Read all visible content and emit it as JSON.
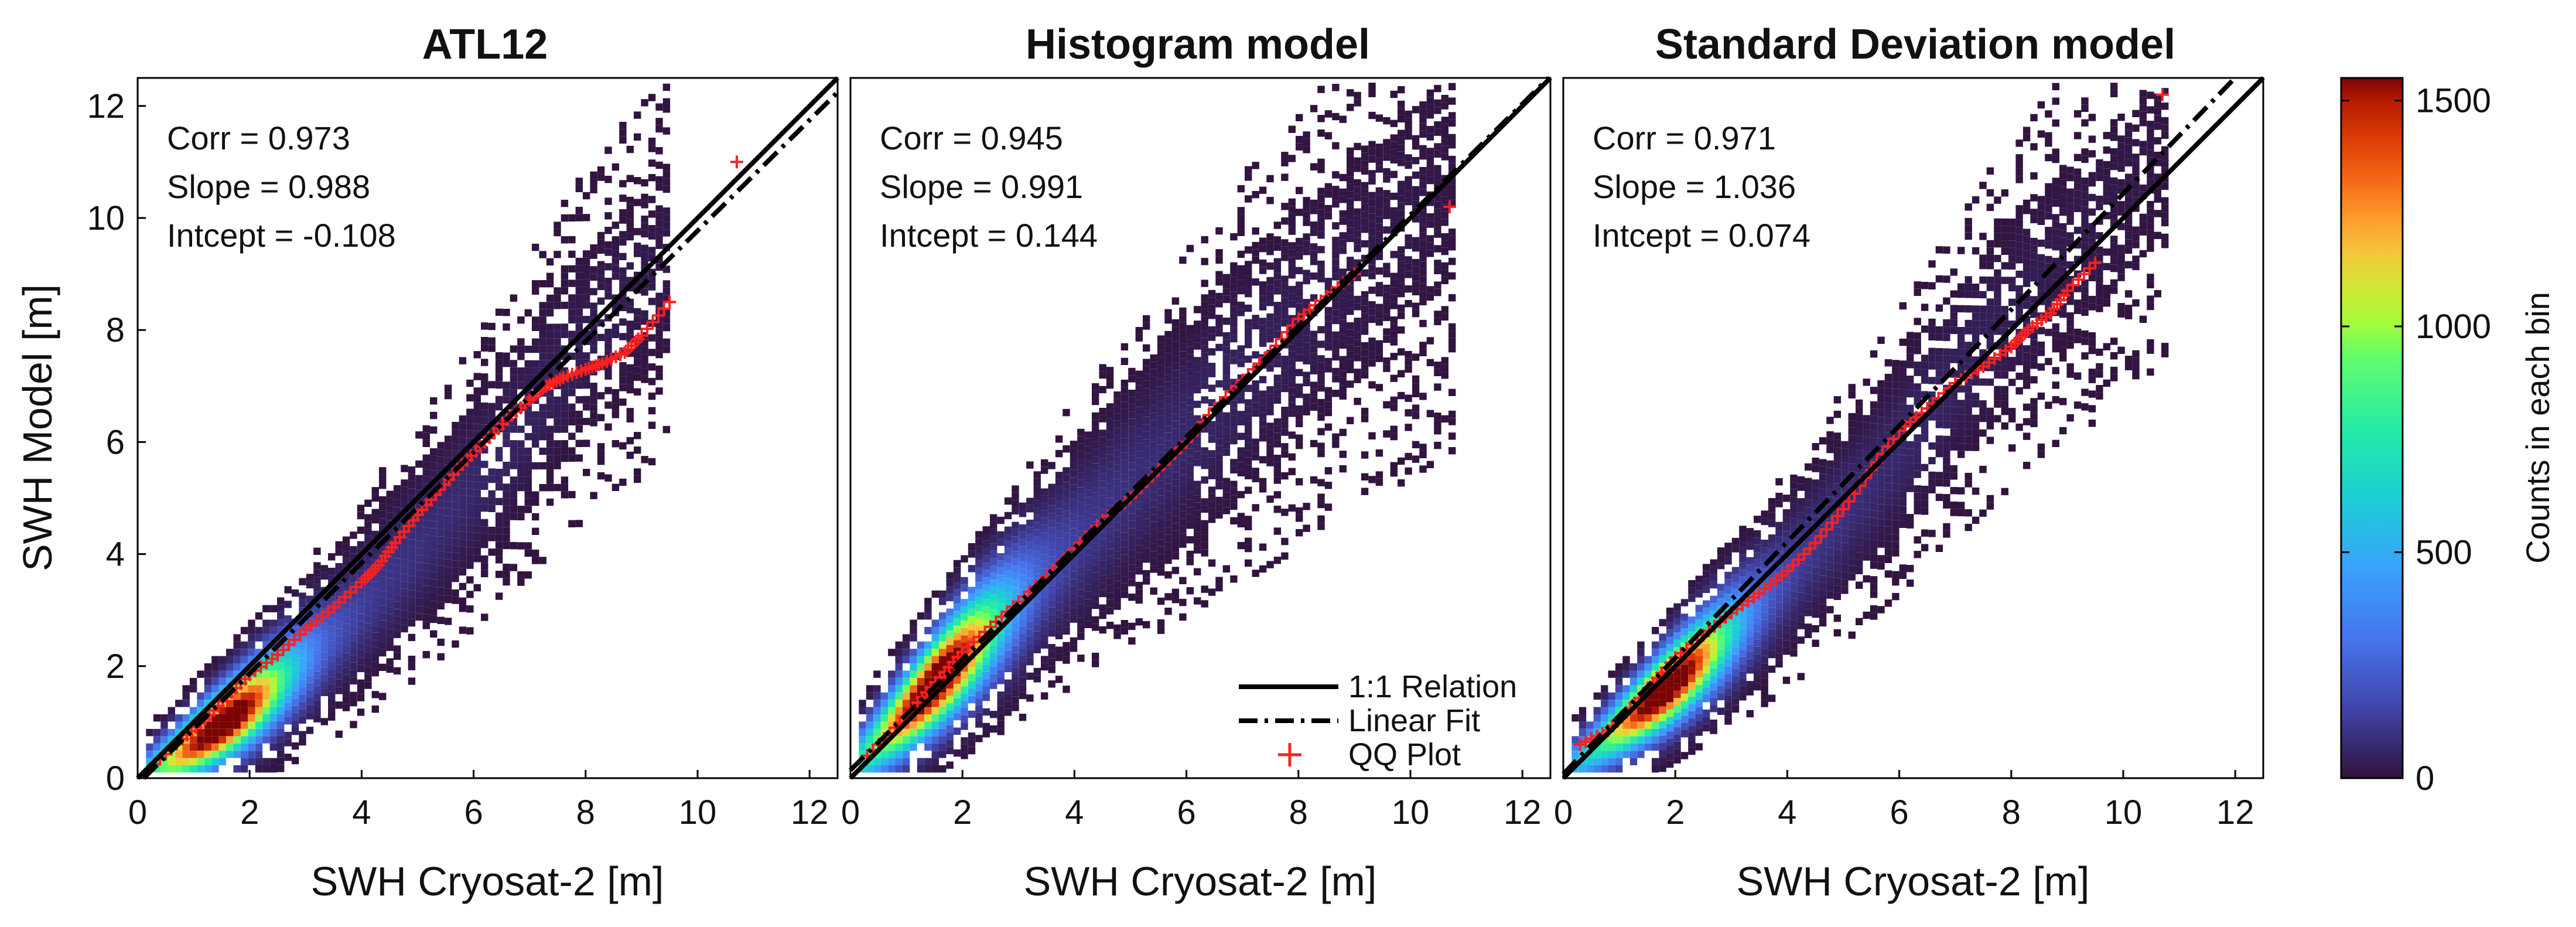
{
  "chart_data": [
    {
      "type": "heatmap",
      "title": "ATL12",
      "xlabel": "SWH Cryosat-2 [m]",
      "ylabel": "SWH Model [m]",
      "xlim": [
        0,
        12.5
      ],
      "ylim": [
        0,
        12.5
      ],
      "xticks": [
        "0",
        "2",
        "4",
        "6",
        "8",
        "10",
        "12"
      ],
      "yticks": [
        "0",
        "2",
        "4",
        "6",
        "8",
        "10",
        "12"
      ],
      "stats": {
        "corr": "Corr = 0.973",
        "slope": "Slope = 0.988",
        "intercept": "Intcept = -0.108"
      },
      "fit": {
        "slope": 0.988,
        "intercept": -0.108
      },
      "density": {
        "bias_lowmid": -0.8,
        "spread": 0.55,
        "peak_at": 1.5,
        "max_x": 9.5
      },
      "qq_points": [
        [
          0.3,
          0.25
        ],
        [
          0.8,
          0.7
        ],
        [
          1.2,
          1.05
        ],
        [
          1.6,
          1.45
        ],
        [
          2.0,
          1.85
        ],
        [
          2.5,
          2.2
        ],
        [
          3.0,
          2.65
        ],
        [
          3.5,
          3.05
        ],
        [
          4.0,
          3.5
        ],
        [
          4.3,
          3.8
        ],
        [
          4.6,
          4.2
        ],
        [
          5.0,
          4.7
        ],
        [
          5.4,
          5.15
        ],
        [
          5.8,
          5.6
        ],
        [
          6.2,
          6.0
        ],
        [
          6.6,
          6.4
        ],
        [
          7.0,
          6.75
        ],
        [
          7.3,
          7.0
        ],
        [
          7.6,
          7.15
        ],
        [
          8.0,
          7.3
        ],
        [
          8.3,
          7.4
        ],
        [
          8.7,
          7.6
        ],
        [
          9.0,
          7.9
        ],
        [
          9.5,
          8.5
        ],
        [
          10.7,
          11.0
        ]
      ]
    },
    {
      "type": "heatmap",
      "title": "Histogram model",
      "xlabel": "SWH Cryosat-2 [m]",
      "xlim": [
        0,
        12.5
      ],
      "ylim": [
        0,
        12.5
      ],
      "xticks": [
        "0",
        "2",
        "4",
        "6",
        "8",
        "10",
        "12"
      ],
      "stats": {
        "corr": "Corr = 0.945",
        "slope": "Slope = 0.991",
        "intercept": "Intcept = 0.144"
      },
      "fit": {
        "slope": 0.991,
        "intercept": 0.144
      },
      "density": {
        "bias_lowmid": 0.1,
        "spread": 0.7,
        "peak_at": 1.5,
        "max_x": 10.7
      },
      "qq_points": [
        [
          0.3,
          0.4
        ],
        [
          0.8,
          0.9
        ],
        [
          1.2,
          1.35
        ],
        [
          1.6,
          1.8
        ],
        [
          2.0,
          2.25
        ],
        [
          2.5,
          2.7
        ],
        [
          3.0,
          3.15
        ],
        [
          3.5,
          3.6
        ],
        [
          4.0,
          4.1
        ],
        [
          4.5,
          4.6
        ],
        [
          5.0,
          5.0
        ],
        [
          5.5,
          5.5
        ],
        [
          6.0,
          6.0
        ],
        [
          6.5,
          6.6
        ],
        [
          7.0,
          7.1
        ],
        [
          7.5,
          7.6
        ],
        [
          8.0,
          8.2
        ],
        [
          8.5,
          8.6
        ],
        [
          9.0,
          9.0
        ],
        [
          10.7,
          10.2
        ]
      ]
    },
    {
      "type": "heatmap",
      "title": "Standard Deviation model",
      "xlabel": "SWH Cryosat-2 [m]",
      "xlim": [
        0,
        12.5
      ],
      "ylim": [
        0,
        12.5
      ],
      "xticks": [
        "0",
        "2",
        "4",
        "6",
        "8",
        "10",
        "12"
      ],
      "stats": {
        "corr": "Corr = 0.971",
        "slope": "Slope = 1.036",
        "intercept": "Intcept = 0.074"
      },
      "fit": {
        "slope": 1.036,
        "intercept": 0.074
      },
      "density": {
        "bias_lowmid": -0.6,
        "spread": 0.55,
        "peak_at": 1.8,
        "max_x": 10.7
      },
      "qq_points": [
        [
          0.3,
          0.6
        ],
        [
          0.8,
          0.85
        ],
        [
          1.2,
          1.25
        ],
        [
          1.6,
          1.7
        ],
        [
          2.0,
          2.15
        ],
        [
          2.5,
          2.55
        ],
        [
          3.0,
          2.95
        ],
        [
          3.5,
          3.3
        ],
        [
          4.0,
          3.7
        ],
        [
          4.5,
          4.2
        ],
        [
          5.0,
          4.8
        ],
        [
          5.5,
          5.5
        ],
        [
          6.0,
          6.2
        ],
        [
          6.5,
          6.6
        ],
        [
          7.0,
          7.05
        ],
        [
          7.5,
          7.35
        ],
        [
          8.0,
          7.7
        ],
        [
          8.3,
          8.0
        ],
        [
          8.7,
          8.3
        ],
        [
          9.0,
          8.7
        ],
        [
          9.5,
          9.2
        ],
        [
          10.7,
          12.2
        ]
      ]
    }
  ],
  "legend": {
    "items": [
      {
        "label": "1:1 Relation",
        "style": "solid"
      },
      {
        "label": "Linear Fit",
        "style": "dashdot"
      },
      {
        "label": "QQ Plot",
        "style": "marker"
      }
    ]
  },
  "colorbar": {
    "label": "Counts in each bin",
    "range": [
      0,
      1550
    ],
    "ticks": [
      "0",
      "500",
      "1000",
      "1500"
    ],
    "tick_values": [
      0,
      500,
      1000,
      1500
    ]
  },
  "colors": {
    "qq": "#ff2020",
    "line": "#000000"
  }
}
